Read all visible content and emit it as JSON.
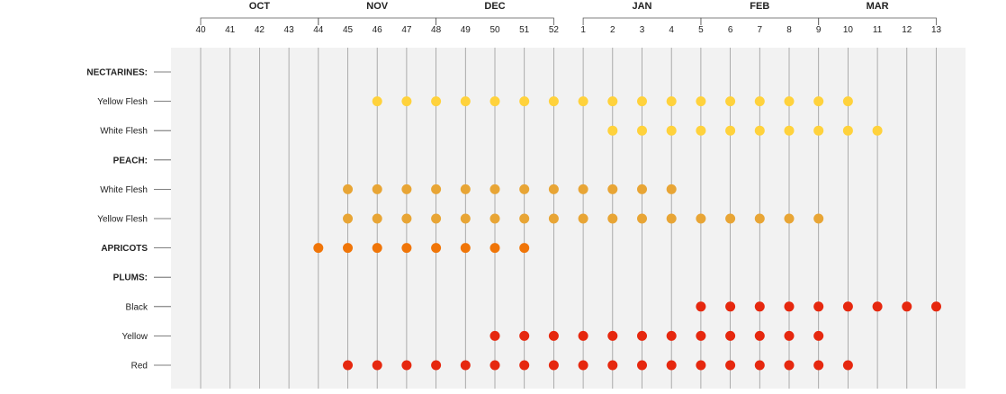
{
  "chart_data": {
    "type": "scatter",
    "months": [
      {
        "label": "OCT",
        "from": 40,
        "to": 44
      },
      {
        "label": "NOV",
        "from": 44,
        "to": 48
      },
      {
        "label": "DEC",
        "from": 48,
        "to": 52
      },
      {
        "label": "JAN",
        "from": 1,
        "to": 5
      },
      {
        "label": "FEB",
        "from": 5,
        "to": 9
      },
      {
        "label": "MAR",
        "from": 9,
        "to": 13
      }
    ],
    "weeks": [
      40,
      41,
      42,
      43,
      44,
      45,
      46,
      47,
      48,
      49,
      50,
      51,
      52,
      1,
      2,
      3,
      4,
      5,
      6,
      7,
      8,
      9,
      10,
      11,
      12,
      13
    ],
    "rows": [
      {
        "label": "NECTARINES:",
        "header": true
      },
      {
        "label": "Yellow Flesh",
        "color": "#FFD23C",
        "weeks": [
          46,
          47,
          48,
          49,
          50,
          51,
          52,
          1,
          2,
          3,
          4,
          5,
          6,
          7,
          8,
          9,
          10
        ]
      },
      {
        "label": "White Flesh",
        "color": "#FFD23C",
        "weeks": [
          2,
          3,
          4,
          5,
          6,
          7,
          8,
          9,
          10,
          11
        ]
      },
      {
        "label": "PEACH:",
        "header": true
      },
      {
        "label": "White Flesh",
        "color": "#E8A535",
        "weeks": [
          45,
          46,
          47,
          48,
          49,
          50,
          51,
          52,
          1,
          2,
          3,
          4
        ]
      },
      {
        "label": "Yellow Flesh",
        "color": "#E8A535",
        "weeks": [
          45,
          46,
          47,
          48,
          49,
          50,
          51,
          52,
          1,
          2,
          3,
          4,
          5,
          6,
          7,
          8,
          9
        ]
      },
      {
        "label": "APRICOTS",
        "header": true,
        "color": "#F07508",
        "weeks": [
          44,
          45,
          46,
          47,
          48,
          49,
          50,
          51
        ]
      },
      {
        "label": "PLUMS:",
        "header": true
      },
      {
        "label": "Black",
        "color": "#E6280F",
        "weeks": [
          5,
          6,
          7,
          8,
          9,
          10,
          11,
          12,
          13
        ]
      },
      {
        "label": "Yellow",
        "color": "#E6280F",
        "weeks": [
          50,
          51,
          52,
          1,
          2,
          3,
          4,
          5,
          6,
          7,
          8,
          9
        ]
      },
      {
        "label": "Red",
        "color": "#E6280F",
        "weeks": [
          45,
          46,
          47,
          48,
          49,
          50,
          51,
          52,
          1,
          2,
          3,
          4,
          5,
          6,
          7,
          8,
          9,
          10
        ]
      }
    ],
    "colors": {
      "background": "#F2F2F2",
      "gridline": "#9A9A9A",
      "text": "#222222"
    }
  }
}
